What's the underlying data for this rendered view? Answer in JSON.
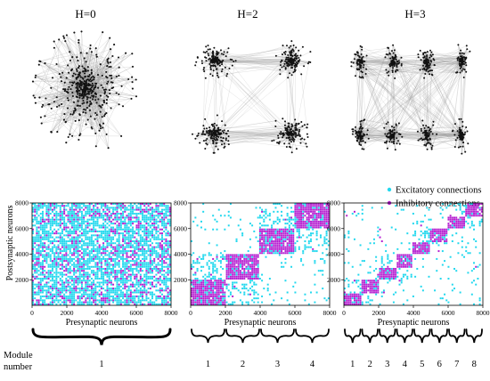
{
  "network_titles": [
    "H=0",
    "H=2",
    "H=3"
  ],
  "matrices": [
    {
      "hierarchy": "H=0",
      "modules": 1,
      "x_ticks": [
        "0",
        "2000",
        "4000",
        "6000",
        "8000"
      ],
      "y_ticks": [
        "2000",
        "4000",
        "6000",
        "8000"
      ],
      "module_labels": [
        "1"
      ]
    },
    {
      "hierarchy": "H=2",
      "modules": 4,
      "x_ticks": [
        "0",
        "2000",
        "4000",
        "6000",
        "8000"
      ],
      "y_ticks": [
        "2000",
        "4000",
        "6000",
        "8000"
      ],
      "module_labels": [
        "1",
        "2",
        "3",
        "4"
      ]
    },
    {
      "hierarchy": "H=3",
      "modules": 8,
      "x_ticks": [
        "0",
        "2000",
        "4000",
        "6000",
        "8000"
      ],
      "y_ticks": [
        "2000",
        "4000",
        "6000",
        "8000"
      ],
      "module_labels": [
        "1",
        "2",
        "3",
        "4",
        "5",
        "6",
        "7",
        "8"
      ]
    }
  ],
  "axes": {
    "xlabel": "Presynaptic neurons",
    "ylabel": "Postsynaptic neurons",
    "range": [
      0,
      8000
    ]
  },
  "legend": {
    "excitatory": "Excitatory connections",
    "inhibitory": "Inhibitory connections"
  },
  "module_caption": {
    "line1": "Module",
    "line2": "number"
  },
  "colors": {
    "excitatory": "#22d8ee",
    "inhibitory": "#b51fd0",
    "node": "#111111",
    "edge": "#9a9a9a"
  }
}
